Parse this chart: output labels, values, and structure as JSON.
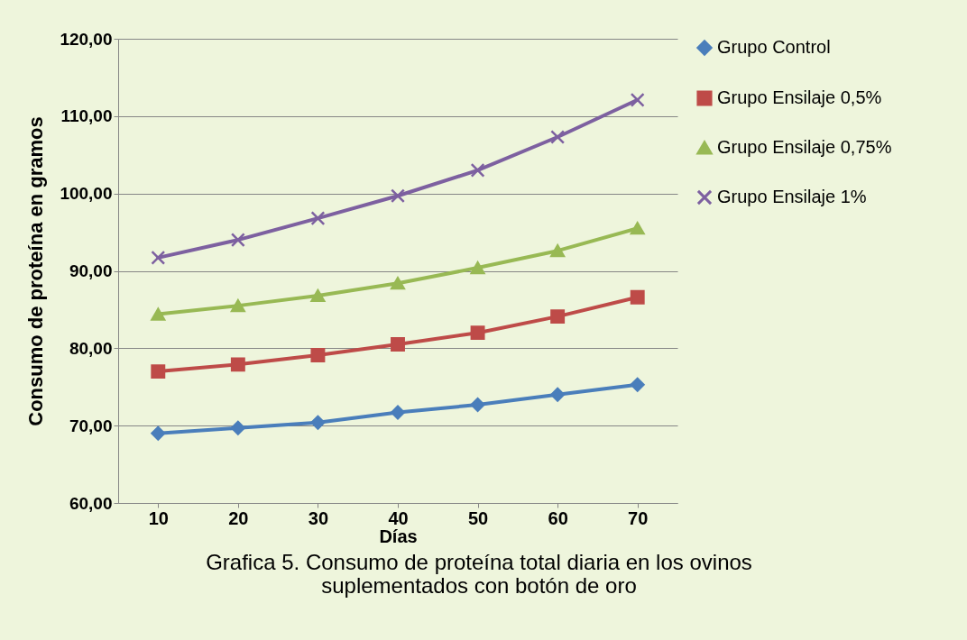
{
  "chart_data": {
    "type": "line",
    "title": "Grafica 5. Consumo de proteína total diaria en los ovinos suplementados con botón de oro",
    "xlabel": "Días",
    "ylabel": "Consumo de proteína en gramos",
    "categories": [
      "10",
      "20",
      "30",
      "40",
      "50",
      "60",
      "70"
    ],
    "series": [
      {
        "name": "Grupo Control",
        "color": "#4a7ebb",
        "marker": "diamond",
        "values": [
          69.0,
          69.7,
          70.4,
          71.7,
          72.7,
          74.0,
          75.3
        ]
      },
      {
        "name": "Grupo Ensilaje 0,5%",
        "color": "#be4b48",
        "marker": "square",
        "values": [
          77.0,
          77.9,
          79.1,
          80.5,
          82.0,
          84.1,
          86.6
        ]
      },
      {
        "name": "Grupo Ensilaje 0,75%",
        "color": "#98b954",
        "marker": "triangle",
        "values": [
          84.4,
          85.5,
          86.8,
          88.4,
          90.4,
          92.6,
          95.5
        ]
      },
      {
        "name": "Grupo Ensilaje 1%",
        "color": "#7d60a0",
        "marker": "cross",
        "values": [
          91.7,
          94.0,
          96.8,
          99.7,
          103.0,
          107.3,
          112.1
        ]
      }
    ],
    "ylim": [
      60,
      120
    ],
    "yticks": [
      {
        "value": 60,
        "label": "60,00"
      },
      {
        "value": 70,
        "label": "70,00"
      },
      {
        "value": 80,
        "label": "80,00"
      },
      {
        "value": 90,
        "label": "90,00"
      },
      {
        "value": 100,
        "label": "100,00"
      },
      {
        "value": 110,
        "label": "110,00"
      },
      {
        "value": 120,
        "label": "120,00"
      }
    ],
    "grid": "y",
    "legend": "right",
    "line_style": "solid"
  }
}
